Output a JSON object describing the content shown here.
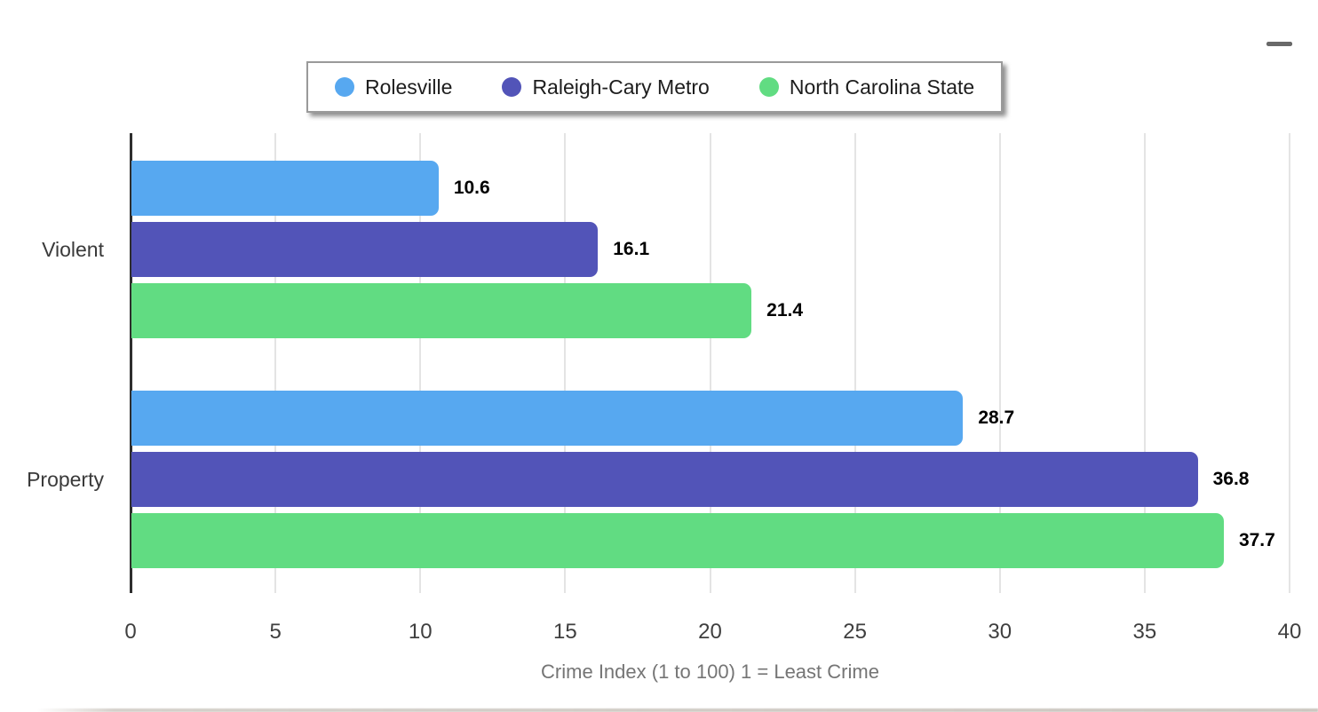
{
  "menu": {
    "icon": "hamburger-menu-icon"
  },
  "chart_data": {
    "type": "bar",
    "orientation": "horizontal",
    "title": "",
    "categories": [
      "Violent",
      "Property"
    ],
    "series": [
      {
        "name": "Rolesville",
        "color": "#57a8f0",
        "values": [
          10.6,
          28.7
        ]
      },
      {
        "name": "Raleigh-Cary Metro",
        "color": "#5254b8",
        "values": [
          16.1,
          36.8
        ]
      },
      {
        "name": "North Carolina State",
        "color": "#61dc82",
        "values": [
          21.4,
          37.7
        ]
      }
    ],
    "value_labels": [
      [
        "10.6",
        "16.1",
        "21.4"
      ],
      [
        "28.7",
        "36.8",
        "37.7"
      ]
    ],
    "xlabel": "Crime Index (1 to 100) 1 = Least Crime",
    "ylabel": "",
    "xlim": [
      0,
      40
    ],
    "xticks": [
      0,
      5,
      10,
      15,
      20,
      25,
      30,
      35,
      40
    ],
    "grid": true,
    "legend_position": "top"
  }
}
